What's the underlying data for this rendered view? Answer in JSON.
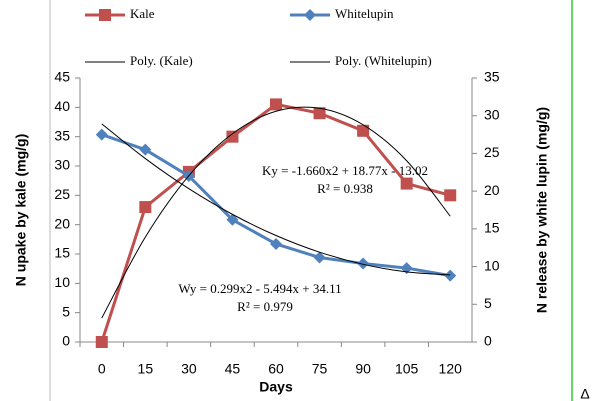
{
  "chart_data": {
    "type": "line",
    "categories": [
      0,
      15,
      30,
      45,
      60,
      75,
      90,
      105,
      120
    ],
    "x_label": "Days",
    "y_label": "N upake by kale (mg/g)",
    "y2_label": "N release by white lupin (mg/g)",
    "ylim": [
      0,
      45
    ],
    "yticks": [
      0,
      5,
      10,
      15,
      20,
      25,
      30,
      35,
      40,
      45
    ],
    "y2lim": [
      0,
      35
    ],
    "y2ticks": [
      0,
      5,
      10,
      15,
      20,
      25,
      30,
      35
    ],
    "series": [
      {
        "name": "Kale",
        "color": "#c0504d",
        "marker": "square",
        "values": [
          0,
          23,
          29,
          35,
          40.5,
          39,
          36,
          27,
          25
        ]
      },
      {
        "name": "Whitelupin",
        "color": "#4f81bd",
        "marker": "diamond",
        "axis": "y2",
        "values": [
          27.5,
          25.5,
          22,
          16.2,
          13,
          11.2,
          10.4,
          9.8,
          8.8
        ]
      },
      {
        "name": "Poly. (Kale)",
        "color": "#000000",
        "marker": "none",
        "values": [
          4.09,
          17.88,
          28.35,
          35.5,
          39.33,
          39.84,
          37.03,
          30.9,
          21.45
        ]
      },
      {
        "name": "Poly. (Whitelupin)",
        "color": "#000000",
        "marker": "none",
        "axis": "y2",
        "values": [
          28.92,
          24.32,
          20.32,
          16.92,
          14.12,
          11.91,
          10.3,
          9.29,
          8.88
        ]
      }
    ],
    "annotations": [
      "Ky = -1.660x2 + 18.77x - 13.02",
      "R² = 0.938",
      "Wy = 0.299x2 - 5.494x + 34.11",
      "R² = 0.979"
    ],
    "footer_mark": "Δ"
  }
}
